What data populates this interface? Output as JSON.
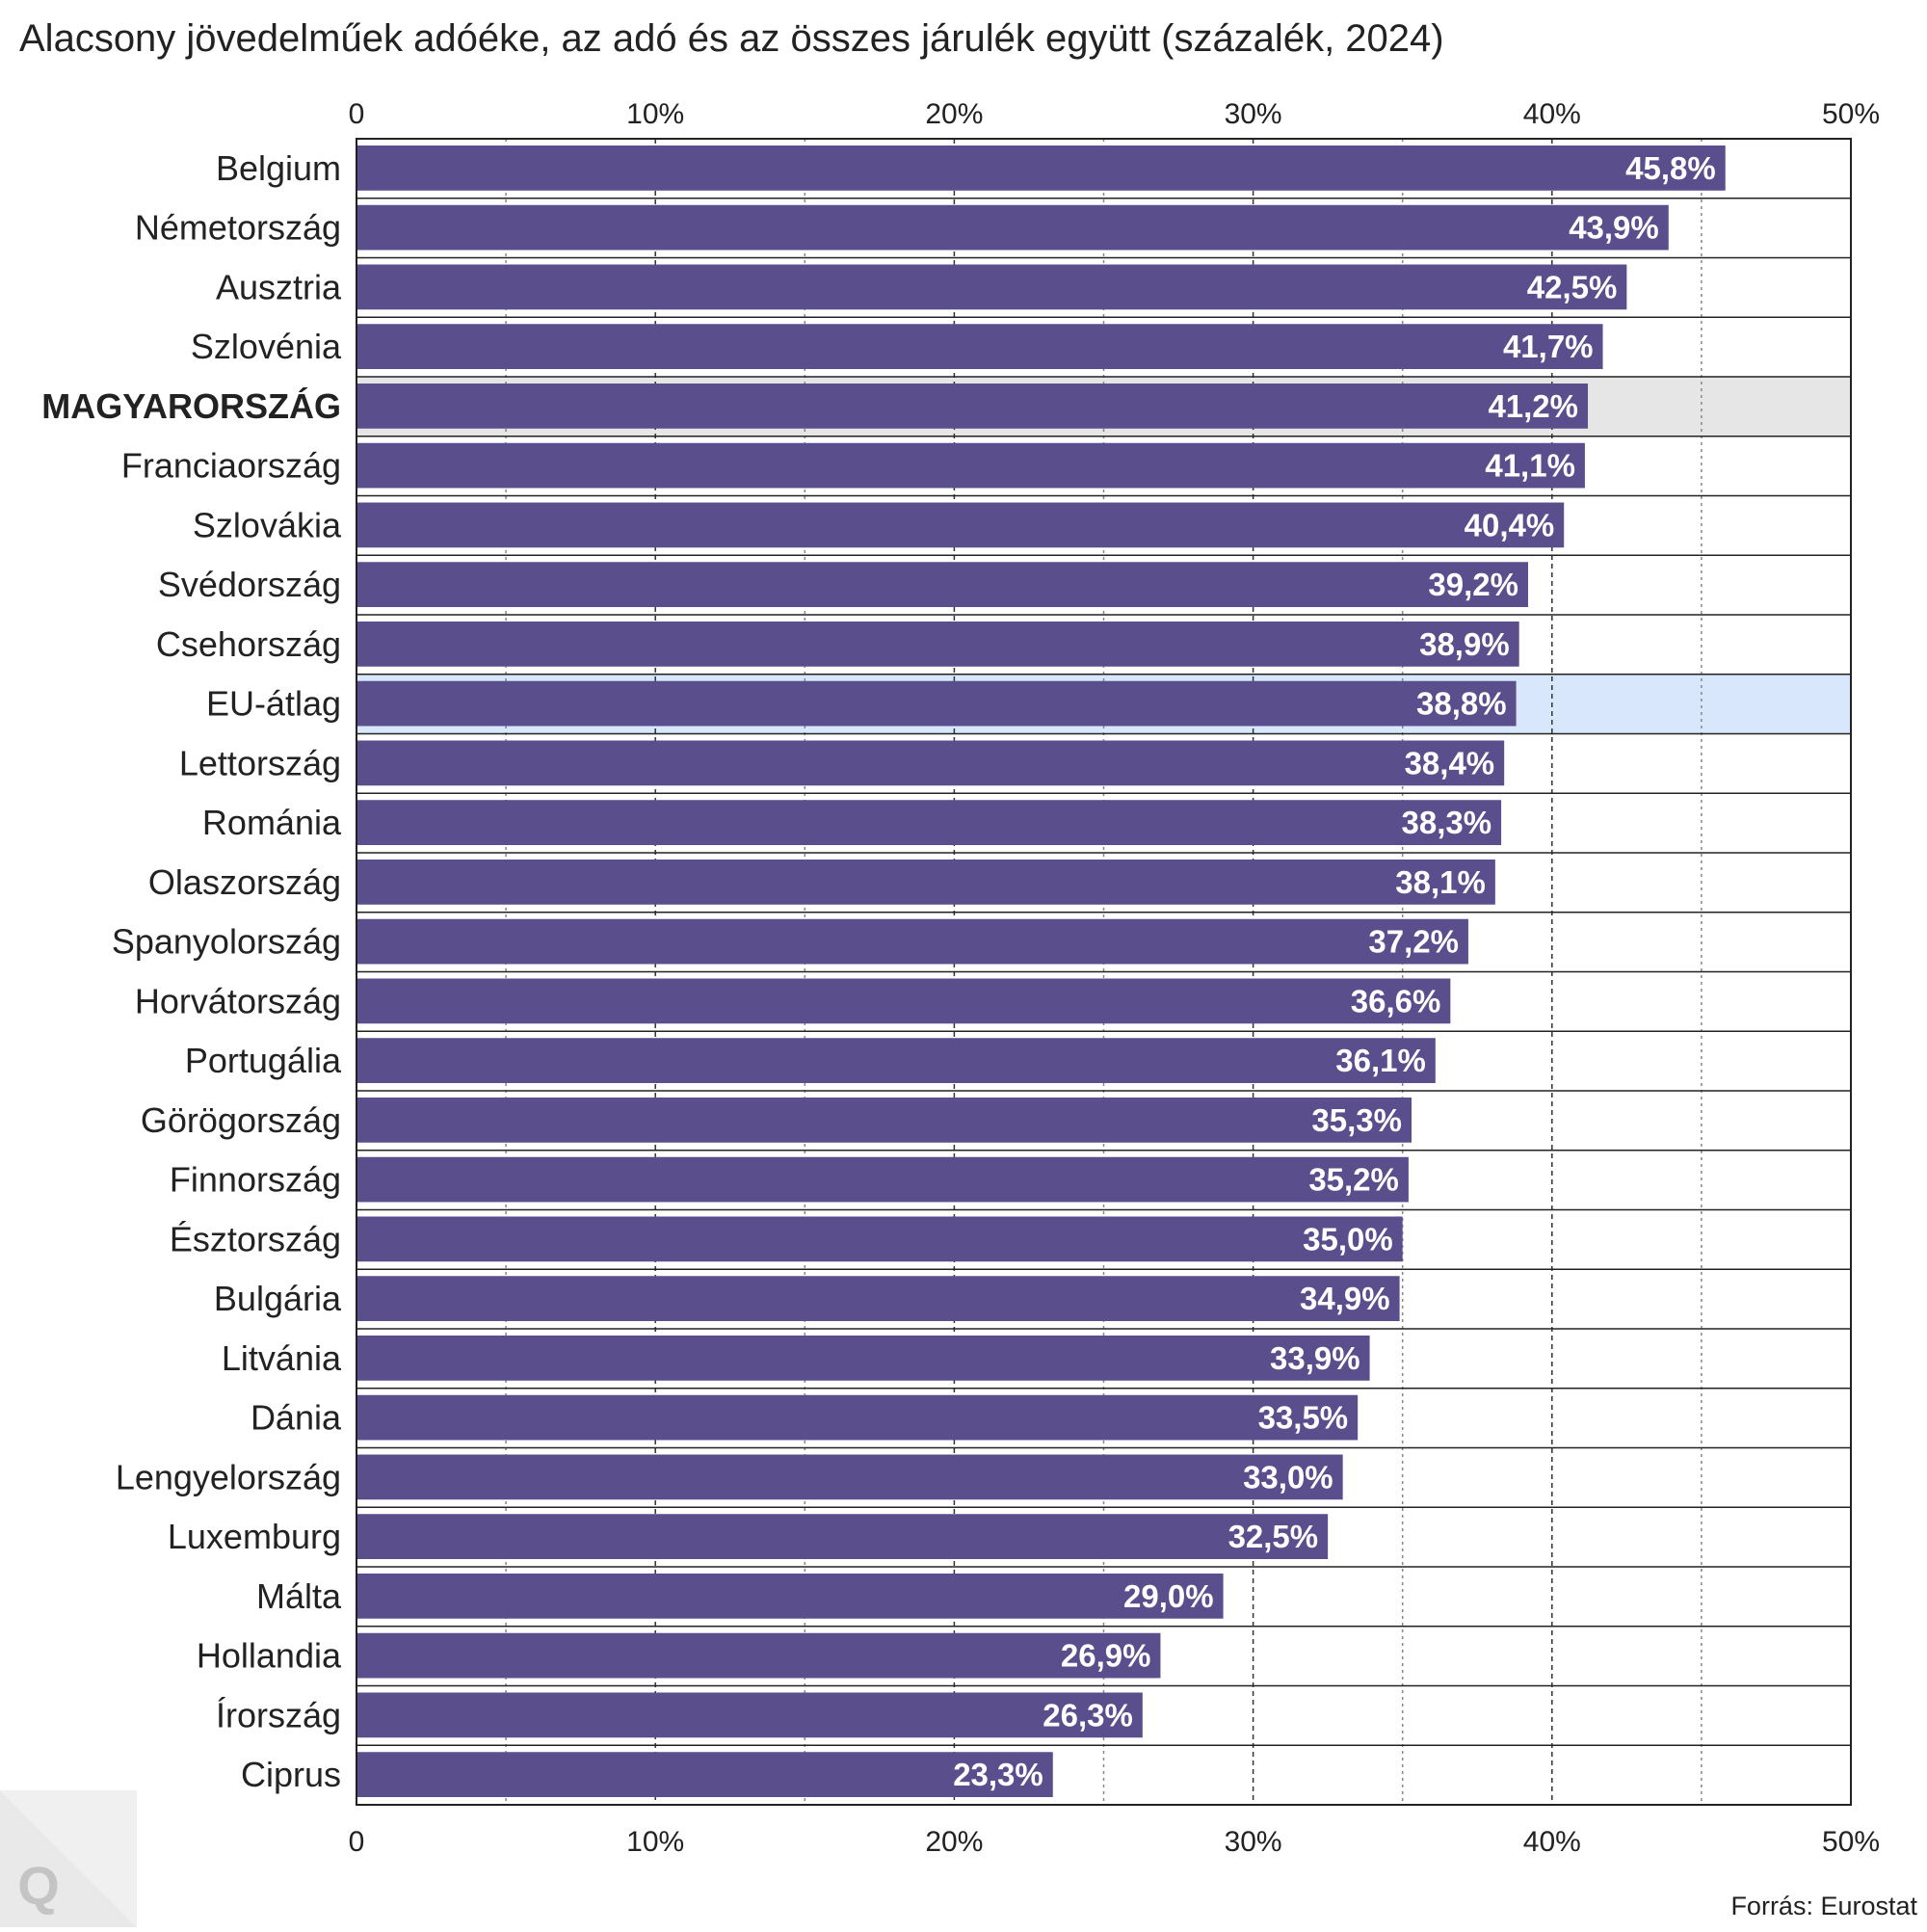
{
  "title": "Alacsony jövedelműek adóéke, az adó és az összes járulék együtt (százalék, 2024)",
  "source": "Forrás: Eurostat",
  "logo_letter": "Q",
  "colors": {
    "bar": "#5a4f8c",
    "highlight_hungary": "#e6e6e6",
    "highlight_eu": "#d8e7fc",
    "label_text": "#ffffff",
    "axis_text": "#222222"
  },
  "chart_data": {
    "type": "bar",
    "orientation": "horizontal",
    "title": "Alacsony jövedelműek adóéke, az adó és az összes járulék együtt (százalék, 2024)",
    "xlim": [
      0,
      50
    ],
    "x_ticks": [
      0,
      10,
      20,
      30,
      40,
      50
    ],
    "x_tick_labels": [
      "0",
      "10%",
      "20%",
      "30%",
      "40%",
      "50%"
    ],
    "grid": "vertical dashed",
    "categories": [
      "Belgium",
      "Németország",
      "Ausztria",
      "Szlovénia",
      "MAGYARORSZÁG",
      "Franciaország",
      "Szlovákia",
      "Svédország",
      "Csehország",
      "EU-átlag",
      "Lettország",
      "Románia",
      "Olaszország",
      "Spanyolország",
      "Horvátország",
      "Portugália",
      "Görögország",
      "Finnország",
      "Észtország",
      "Bulgária",
      "Litvánia",
      "Dánia",
      "Lengyelország",
      "Luxemburg",
      "Málta",
      "Hollandia",
      "Írország",
      "Ciprus"
    ],
    "values": [
      45.8,
      43.9,
      42.5,
      41.7,
      41.2,
      41.1,
      40.4,
      39.2,
      38.9,
      38.8,
      38.4,
      38.3,
      38.1,
      37.2,
      36.6,
      36.1,
      35.3,
      35.2,
      35.0,
      34.9,
      33.9,
      33.5,
      33.0,
      32.5,
      29.0,
      26.9,
      26.3,
      23.3
    ],
    "value_labels": [
      "45,8%",
      "43,9%",
      "42,5%",
      "41,7%",
      "41,2%",
      "41,1%",
      "40,4%",
      "39,2%",
      "38,9%",
      "38,8%",
      "38,4%",
      "38,3%",
      "38,1%",
      "37,2%",
      "36,6%",
      "36,1%",
      "35,3%",
      "35,2%",
      "35,0%",
      "34,9%",
      "33,9%",
      "33,5%",
      "33,0%",
      "32,5%",
      "29,0%",
      "26,9%",
      "26,3%",
      "23,3%"
    ],
    "highlighted": {
      "MAGYARORSZÁG": "bold, grey row",
      "EU-átlag": "light blue row"
    }
  }
}
